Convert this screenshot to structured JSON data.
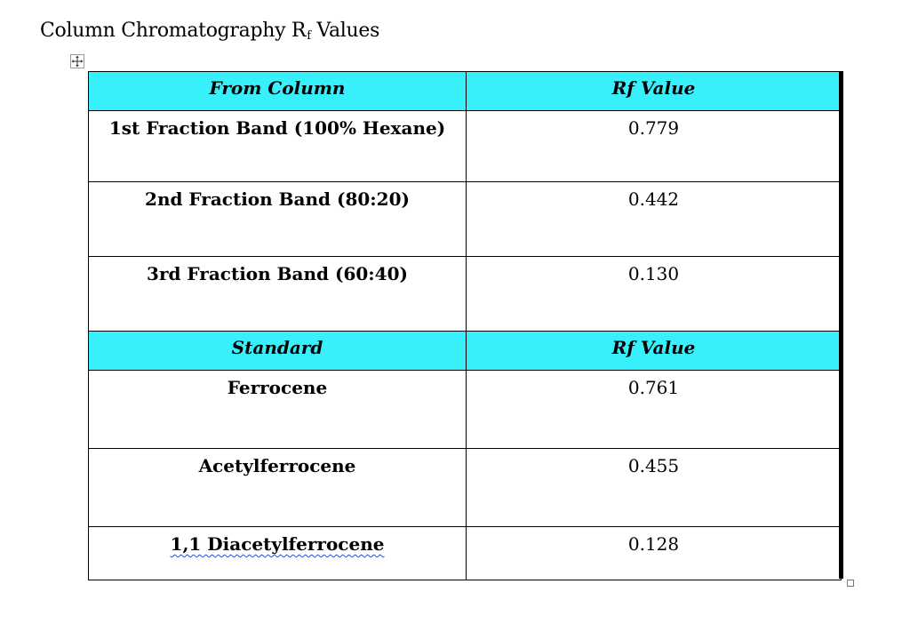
{
  "document": {
    "title_main": "Column Chromatography R",
    "title_sub": "f",
    "title_tail": " Values"
  },
  "table": {
    "section1_header": {
      "col1": "From Column",
      "col2": "Rf Value"
    },
    "section1_rows": [
      {
        "name": "1st Fraction Band (100% Hexane)",
        "value": "0.779"
      },
      {
        "name": "2nd Fraction Band (80:20)",
        "value": "0.442"
      },
      {
        "name": "3rd Fraction Band (60:40)",
        "value": "0.130"
      }
    ],
    "section2_header": {
      "col1": "Standard",
      "col2": "Rf Value"
    },
    "section2_rows": [
      {
        "name": "Ferrocene",
        "value": "0.761"
      },
      {
        "name": "Acetylferrocene",
        "value": "0.455"
      },
      {
        "name": "1,1 Diacetylferrocene",
        "value": "0.128"
      }
    ]
  },
  "colors": {
    "header_bg": "#38f0fc",
    "spellcheck_underline": "#2a4fd6"
  },
  "icons": {
    "table_move": "move-arrows-icon",
    "table_resize": "resize-handle-icon"
  }
}
